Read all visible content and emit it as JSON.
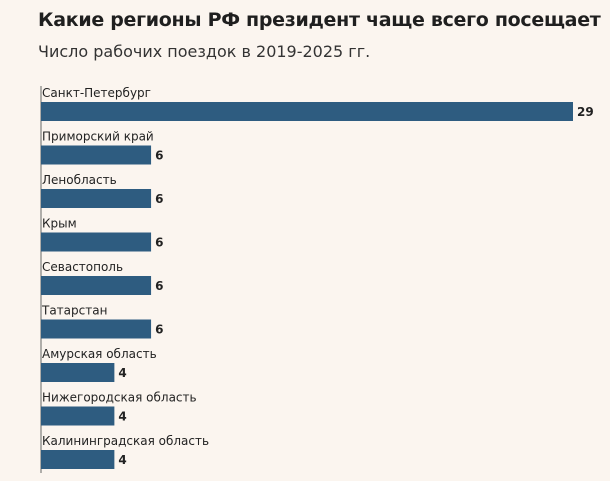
{
  "chart_data": {
    "type": "bar",
    "orientation": "horizontal",
    "title": "Какие регионы РФ президент чаще всего посещает",
    "subtitle": "Число рабочих поездок в 2019-2025 гг.",
    "categories": [
      "Санкт-Петербург",
      "Приморский край",
      "Ленобласть",
      "Крым",
      "Севастополь",
      "Татарстан",
      "Амурская область",
      "Нижегородская область",
      "Калининградская область"
    ],
    "values": [
      29,
      6,
      6,
      6,
      6,
      6,
      4,
      4,
      4
    ],
    "data_labels": true,
    "grid": false,
    "legend": "none",
    "colors": {
      "bar": "#2e5c80",
      "background": "#fbf5ef",
      "baseline": "#666666"
    }
  }
}
